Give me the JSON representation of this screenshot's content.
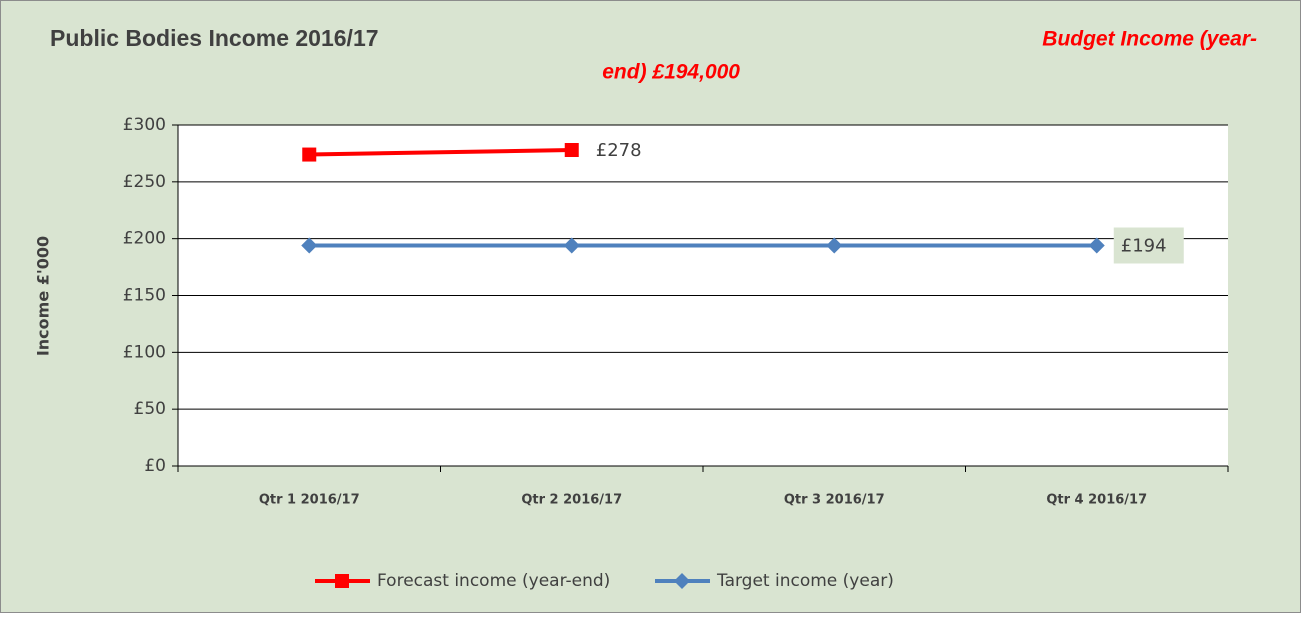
{
  "chart_data": {
    "type": "line",
    "title": "Public Bodies Income 2016/17",
    "annotation": [
      "Budget Income (year-",
      "end) £194,000"
    ],
    "y_axis_label": "Income £'000",
    "categories": [
      "Qtr 1 2016/17",
      "Qtr 2 2016/17",
      "Qtr 3 2016/17",
      "Qtr 4 2016/17"
    ],
    "series": [
      {
        "name": "Forecast income (year-end)",
        "color": "#ff0000",
        "marker": "square",
        "values": [
          274,
          278,
          null,
          null
        ],
        "value_labels": [
          null,
          "£278",
          null,
          null
        ]
      },
      {
        "name": "Target income (year)",
        "color": "#4f81bd",
        "marker": "diamond",
        "values": [
          194,
          194,
          194,
          194
        ],
        "value_labels": [
          null,
          null,
          null,
          "£194"
        ]
      }
    ],
    "ylim": [
      0,
      300
    ],
    "yticks": [
      {
        "value": 0,
        "label": "£0"
      },
      {
        "value": 50,
        "label": "£50"
      },
      {
        "value": 100,
        "label": "£100"
      },
      {
        "value": 150,
        "label": "£150"
      },
      {
        "value": 200,
        "label": "£200"
      },
      {
        "value": 250,
        "label": "£250"
      },
      {
        "value": 300,
        "label": "£300"
      }
    ],
    "grid": true,
    "legend": "bottom"
  }
}
